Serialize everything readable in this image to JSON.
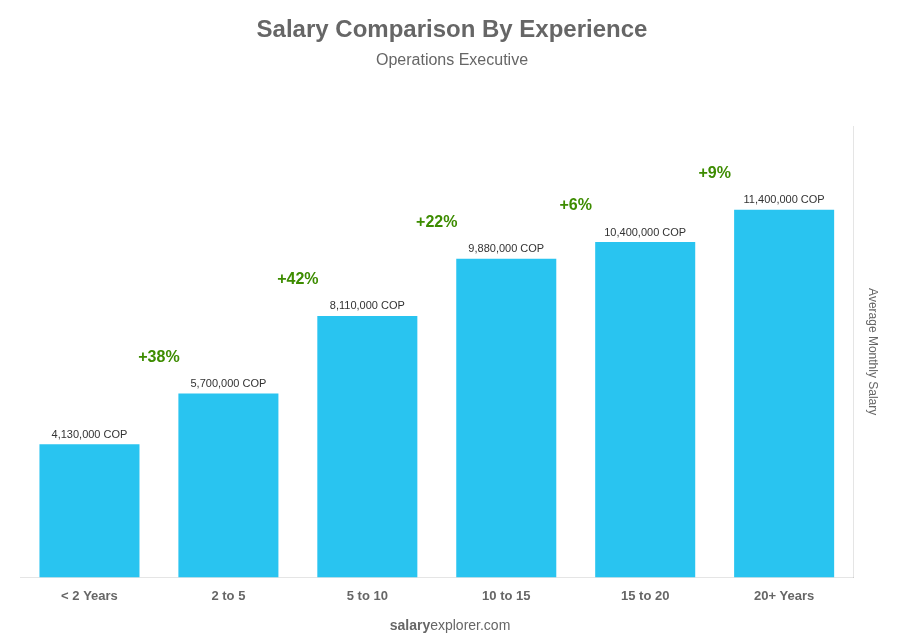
{
  "chart_data": {
    "type": "bar",
    "title": "Salary Comparison By Experience",
    "subtitle": "Operations Executive",
    "categories": [
      "< 2 Years",
      "2 to 5",
      "5 to 10",
      "10 to 15",
      "15 to 20",
      "20+ Years"
    ],
    "values": [
      4130000,
      5700000,
      8110000,
      9880000,
      10400000,
      11400000
    ],
    "value_labels": [
      "4,130,000 COP",
      "5,700,000 COP",
      "8,110,000 COP",
      "9,880,000 COP",
      "10,400,000 COP",
      "11,400,000 COP"
    ],
    "data_labels": true,
    "annotations": [
      null,
      "+38%",
      "+42%",
      "+22%",
      "+6%",
      "+9%"
    ],
    "ylabel": "Average Monthly Salary",
    "watermark": [
      "salary",
      "explorer.com"
    ],
    "color": "#29c4f0",
    "ylim": [
      0,
      14000000
    ],
    "grid": false,
    "tick_labels": "x"
  }
}
